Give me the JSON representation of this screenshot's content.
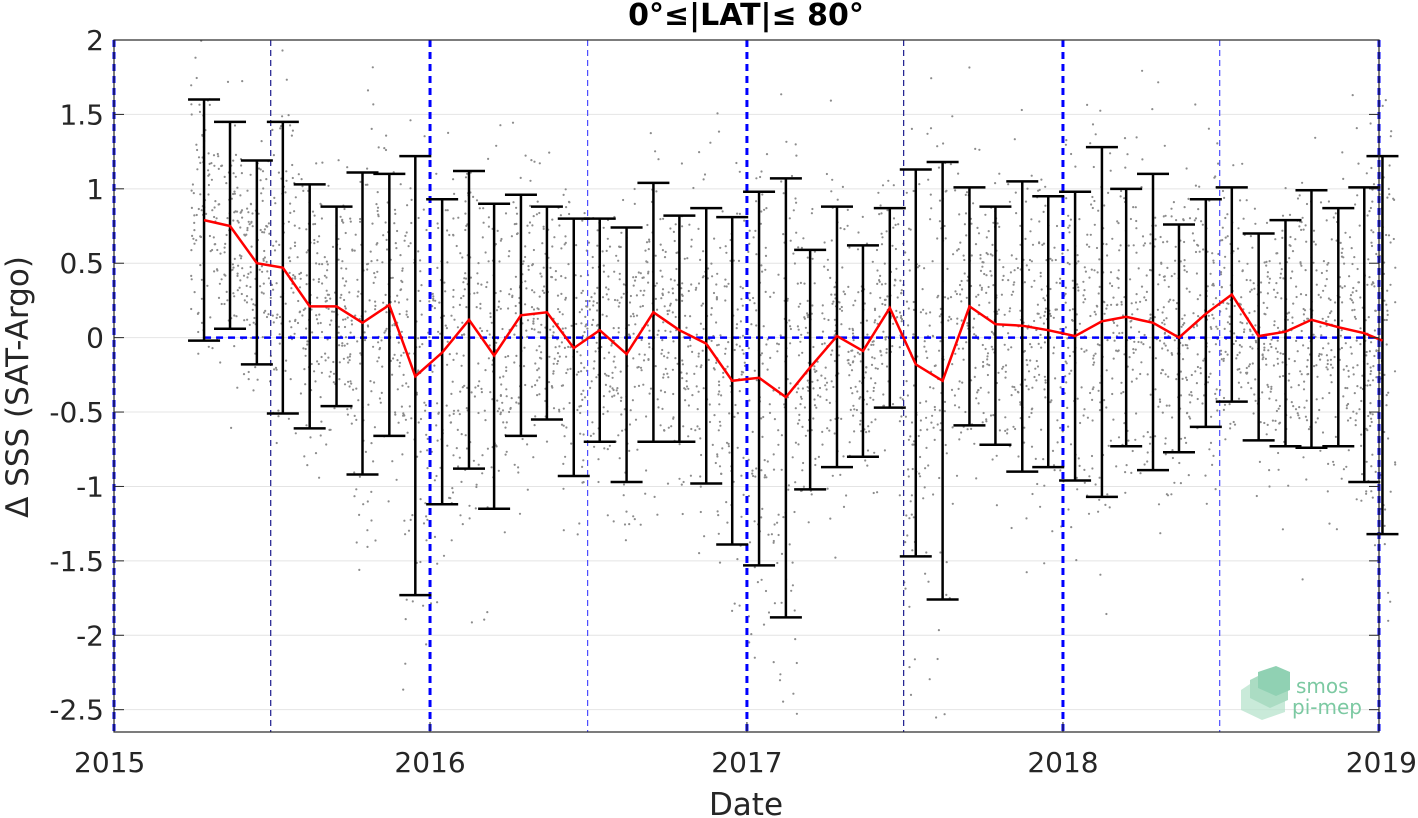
{
  "chart_data": {
    "type": "line",
    "title": "0°≤|LAT|≤ 80°",
    "xlabel": "Date",
    "ylabel": "Δ SSS (SAT-Argo)",
    "xlim": [
      "2015-01-01",
      "2019-01-01"
    ],
    "ylim": [
      -2.65,
      2.0
    ],
    "x_ticks": [
      "2015",
      "2016",
      "2017",
      "2018",
      "2019"
    ],
    "y_ticks": [
      "2",
      "1.5",
      "1",
      "0.5",
      "0",
      "-0.5",
      "-1",
      "-1.5",
      "-2",
      "-2.5"
    ],
    "y_tick_values": [
      2,
      1.5,
      1,
      0.5,
      0,
      -0.5,
      -1,
      -1.5,
      -2,
      -2.5
    ],
    "grid": true,
    "reference_line_y": 0,
    "half_year_markers": [
      "2015-07-01",
      "2016-07-01",
      "2017-07-01",
      "2018-07-01"
    ],
    "year_markers": [
      "2015-01-01",
      "2016-01-01",
      "2017-01-01",
      "2018-01-01",
      "2019-01-01"
    ],
    "scatter_color": "#8c8c8c",
    "mean_line_color": "#ff0000",
    "errorbar_color": "#000000",
    "marker_color": "#0000ff",
    "series": [
      {
        "kind": "errorbar",
        "x": [
          "2015-04-15",
          "2015-05-15",
          "2015-06-15",
          "2015-07-15",
          "2015-08-15",
          "2015-09-15",
          "2015-10-15",
          "2015-11-15",
          "2015-12-15",
          "2016-01-15",
          "2016-02-15",
          "2016-03-15",
          "2016-04-15",
          "2016-05-15",
          "2016-06-15",
          "2016-07-15",
          "2016-08-15",
          "2016-09-15",
          "2016-10-15",
          "2016-11-15",
          "2016-12-15",
          "2017-01-15",
          "2017-02-15",
          "2017-03-15",
          "2017-04-15",
          "2017-05-15",
          "2017-06-15",
          "2017-07-15",
          "2017-08-15",
          "2017-09-15",
          "2017-10-15",
          "2017-11-15",
          "2017-12-15",
          "2018-01-15",
          "2018-02-15",
          "2018-03-15",
          "2018-04-15",
          "2018-05-15",
          "2018-06-15",
          "2018-07-15",
          "2018-08-15",
          "2018-09-15",
          "2018-10-15",
          "2018-11-15",
          "2018-12-15",
          "2019-01-05"
        ],
        "mean": [
          0.79,
          0.75,
          0.5,
          0.47,
          0.21,
          0.21,
          0.1,
          0.22,
          -0.26,
          -0.1,
          0.12,
          -0.12,
          0.15,
          0.17,
          -0.07,
          0.05,
          -0.11,
          0.17,
          0.05,
          -0.04,
          -0.29,
          -0.27,
          -0.4,
          -0.2,
          0.01,
          -0.09,
          0.2,
          -0.18,
          -0.29,
          0.21,
          0.09,
          0.08,
          0.05,
          0.01,
          0.11,
          0.14,
          0.1,
          0.0,
          0.16,
          0.29,
          0.01,
          0.04,
          0.12,
          0.07,
          0.03,
          -0.02
        ],
        "upper": [
          1.6,
          1.45,
          1.19,
          1.45,
          1.03,
          0.88,
          1.11,
          1.1,
          1.22,
          0.93,
          1.12,
          0.9,
          0.96,
          0.88,
          0.8,
          0.8,
          0.74,
          1.04,
          0.82,
          0.87,
          0.81,
          0.98,
          1.07,
          0.59,
          0.88,
          0.62,
          0.87,
          1.13,
          1.18,
          1.01,
          0.88,
          1.05,
          0.95,
          0.98,
          1.28,
          1.0,
          1.1,
          0.76,
          0.93,
          1.01,
          0.7,
          0.79,
          0.99,
          0.87,
          1.01,
          1.22
        ],
        "lower": [
          -0.02,
          0.06,
          -0.18,
          -0.51,
          -0.61,
          -0.46,
          -0.92,
          -0.66,
          -1.73,
          -1.12,
          -0.88,
          -1.15,
          -0.66,
          -0.55,
          -0.93,
          -0.7,
          -0.97,
          -0.7,
          -0.7,
          -0.98,
          -1.39,
          -1.53,
          -1.88,
          -1.02,
          -0.87,
          -0.8,
          -0.47,
          -1.47,
          -1.76,
          -0.59,
          -0.72,
          -0.9,
          -0.87,
          -0.96,
          -1.07,
          -0.73,
          -0.89,
          -0.77,
          -0.6,
          -0.43,
          -0.69,
          -0.73,
          -0.74,
          -0.73,
          -0.97,
          -1.32
        ]
      }
    ]
  },
  "logo": {
    "line1": "smos",
    "line2": "pi-mep",
    "color": "#7cc9a2"
  }
}
